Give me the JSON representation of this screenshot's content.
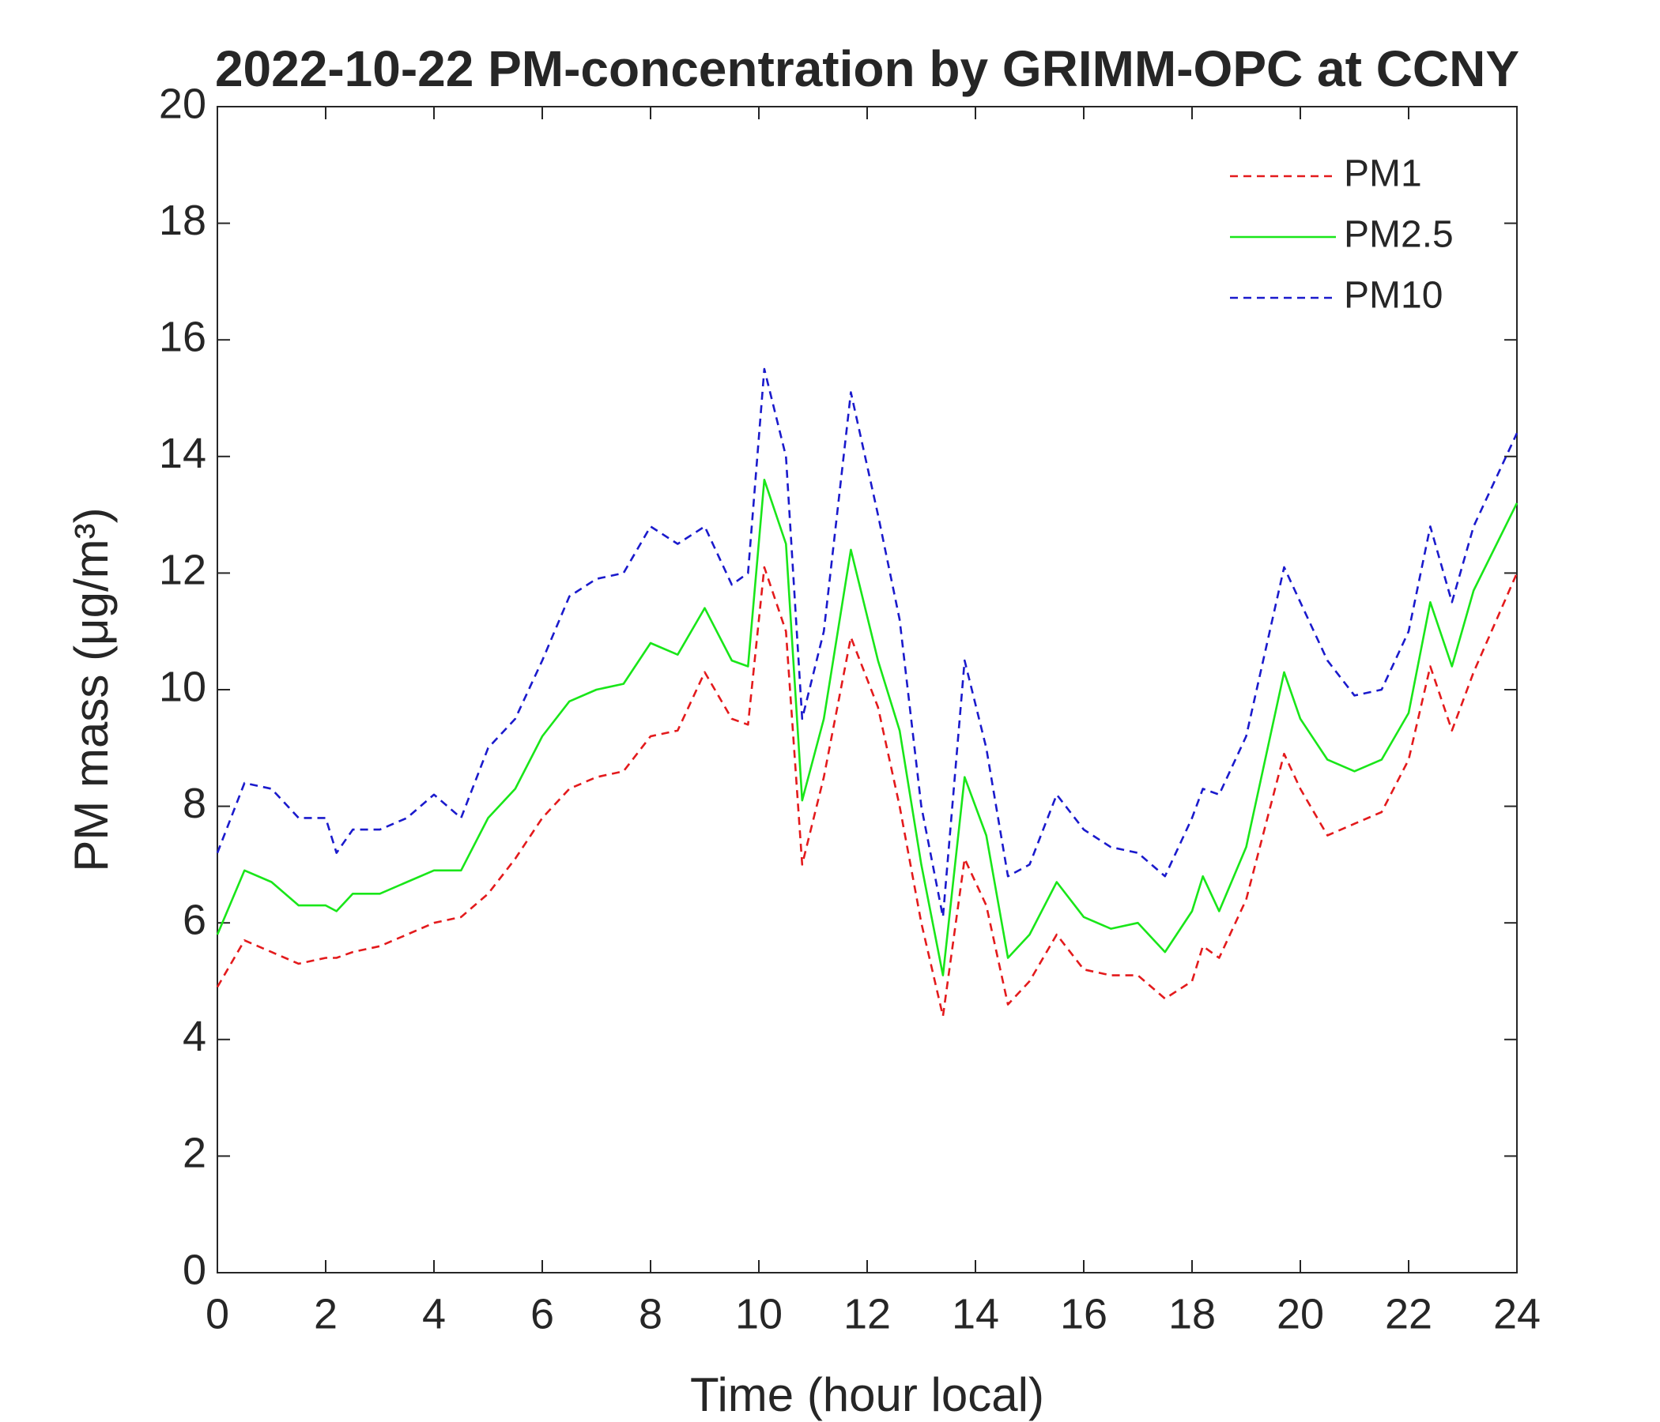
{
  "chart_data": {
    "type": "line",
    "title": "2022-10-22 PM-concentration by GRIMM-OPC at CCNY",
    "xlabel": "Time (hour local)",
    "ylabel": "PM mass (μg/m³)",
    "x": [
      0,
      0.5,
      1,
      1.5,
      2,
      2.2,
      2.5,
      3,
      3.5,
      4,
      4.5,
      5,
      5.5,
      6,
      6.5,
      7,
      7.5,
      8,
      8.5,
      9,
      9.5,
      9.8,
      10.1,
      10.5,
      10.8,
      11.2,
      11.7,
      12.2,
      12.6,
      13,
      13.4,
      13.8,
      14.2,
      14.6,
      15,
      15.5,
      16,
      16.5,
      17,
      17.5,
      18,
      18.2,
      18.5,
      19,
      19.7,
      20,
      20.5,
      21,
      21.5,
      22,
      22.4,
      22.8,
      23.2,
      24
    ],
    "series": [
      {
        "name": "PM1",
        "color": "#e31a1c",
        "linestyle": "dashed",
        "values": [
          4.9,
          5.7,
          5.5,
          5.3,
          5.4,
          5.4,
          5.5,
          5.6,
          5.8,
          6.0,
          6.1,
          6.5,
          7.1,
          7.8,
          8.3,
          8.5,
          8.6,
          9.2,
          9.3,
          10.3,
          9.5,
          9.4,
          12.1,
          11.0,
          7.0,
          8.5,
          10.9,
          9.7,
          8.0,
          6.0,
          4.4,
          7.1,
          6.3,
          4.6,
          5.0,
          5.8,
          5.2,
          5.1,
          5.1,
          4.7,
          5.0,
          5.6,
          5.4,
          6.4,
          8.9,
          8.3,
          7.5,
          7.7,
          7.9,
          8.8,
          10.4,
          9.3,
          10.3,
          12.0
        ]
      },
      {
        "name": "PM2.5",
        "color": "#19e619",
        "linestyle": "solid",
        "values": [
          5.8,
          6.9,
          6.7,
          6.3,
          6.3,
          6.2,
          6.5,
          6.5,
          6.7,
          6.9,
          6.9,
          7.8,
          8.3,
          9.2,
          9.8,
          10.0,
          10.1,
          10.8,
          10.6,
          11.4,
          10.5,
          10.4,
          13.6,
          12.5,
          8.1,
          9.5,
          12.4,
          10.5,
          9.3,
          7.0,
          5.1,
          8.5,
          7.5,
          5.4,
          5.8,
          6.7,
          6.1,
          5.9,
          6.0,
          5.5,
          6.2,
          6.8,
          6.2,
          7.3,
          10.3,
          9.5,
          8.8,
          8.6,
          8.8,
          9.6,
          11.5,
          10.4,
          11.7,
          13.2
        ]
      },
      {
        "name": "PM10",
        "color": "#1a1acc",
        "linestyle": "dashed",
        "values": [
          7.2,
          8.4,
          8.3,
          7.8,
          7.8,
          7.2,
          7.6,
          7.6,
          7.8,
          8.2,
          7.8,
          9.0,
          9.5,
          10.5,
          11.6,
          11.9,
          12.0,
          12.8,
          12.5,
          12.8,
          11.8,
          12.0,
          15.5,
          14.0,
          9.5,
          11.0,
          15.1,
          13.0,
          11.2,
          8.0,
          6.1,
          10.5,
          9.0,
          6.8,
          7.0,
          8.2,
          7.6,
          7.3,
          7.2,
          6.8,
          7.8,
          8.3,
          8.2,
          9.2,
          12.1,
          11.5,
          10.5,
          9.9,
          10.0,
          11.0,
          12.8,
          11.5,
          12.8,
          14.4
        ]
      }
    ],
    "xlim": [
      0,
      24
    ],
    "xticks": [
      0,
      2,
      4,
      6,
      8,
      10,
      12,
      14,
      16,
      18,
      20,
      22,
      24
    ],
    "ylim": [
      0,
      20
    ],
    "yticks": [
      0,
      2,
      4,
      6,
      8,
      10,
      12,
      14,
      16,
      18,
      20
    ],
    "grid": false,
    "legend": "top-right"
  }
}
